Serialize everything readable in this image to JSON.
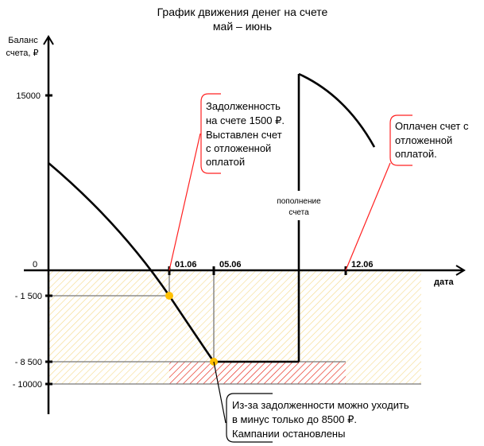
{
  "title": {
    "line1": "График движения денег на счете",
    "line2": "май – июнь"
  },
  "y_axis": {
    "label_line1": "Баланс",
    "label_line2": "счета, ₽",
    "ticks": [
      "15000",
      "0",
      "- 1 500",
      "- 8 500",
      "- 10000"
    ]
  },
  "x_axis": {
    "label": "дата",
    "ticks": [
      "01.06",
      "05.06",
      "12.06"
    ]
  },
  "topup_label": {
    "line1": "пополнение",
    "line2": "счета"
  },
  "callouts": [
    {
      "lines": [
        "Задолженность",
        "на счете 1500 ₽.",
        "Выставлен счет",
        "с отложенной",
        "оплатой"
      ]
    },
    {
      "lines": [
        "Оплачен счет с",
        "отложенной",
        "оплатой."
      ]
    },
    {
      "lines": [
        "Из-за задолженности можно уходить",
        "в минус только до 8500 ₽.",
        "Кампании остановлены"
      ]
    }
  ],
  "colors": {
    "hatch_yellow": "#f5d98a",
    "hatch_red": "#e8202a",
    "point": "#ffc000",
    "callout_red": "#ff2020"
  }
}
